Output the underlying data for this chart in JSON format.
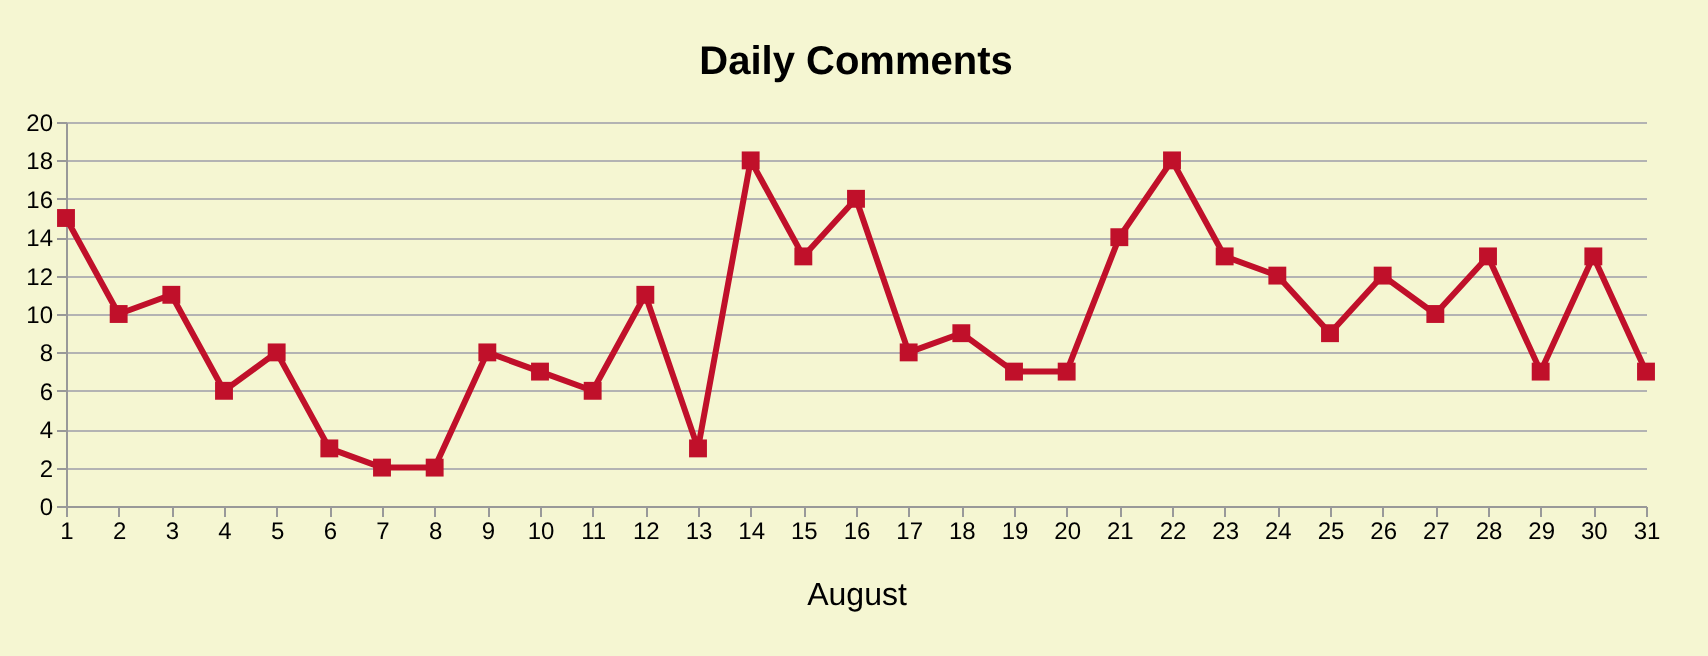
{
  "chart_data": {
    "type": "line",
    "title": "Daily Comments",
    "xlabel": "August",
    "x": [
      1,
      2,
      3,
      4,
      5,
      6,
      7,
      8,
      9,
      10,
      11,
      12,
      13,
      14,
      15,
      16,
      17,
      18,
      19,
      20,
      21,
      22,
      23,
      24,
      25,
      26,
      27,
      28,
      29,
      30,
      31
    ],
    "series": [
      {
        "color": "#c0102a",
        "values": [
          15,
          10,
          11,
          6,
          8,
          3,
          2,
          2,
          8,
          7,
          6,
          11,
          3,
          18,
          13,
          16,
          8,
          9,
          7,
          7,
          14,
          18,
          13,
          12,
          9,
          12,
          10,
          13,
          7,
          13,
          7
        ]
      }
    ],
    "xlim": [
      1,
      31
    ],
    "xticks": [
      1,
      2,
      3,
      4,
      5,
      6,
      7,
      8,
      9,
      10,
      11,
      12,
      13,
      14,
      15,
      16,
      17,
      18,
      19,
      20,
      21,
      22,
      23,
      24,
      25,
      26,
      27,
      28,
      29,
      30,
      31
    ],
    "ylim": [
      0,
      20
    ],
    "yticks": [
      0,
      2,
      4,
      6,
      8,
      10,
      12,
      14,
      16,
      18,
      20
    ],
    "grid": "y",
    "marker": "square",
    "line_style": "solid"
  }
}
